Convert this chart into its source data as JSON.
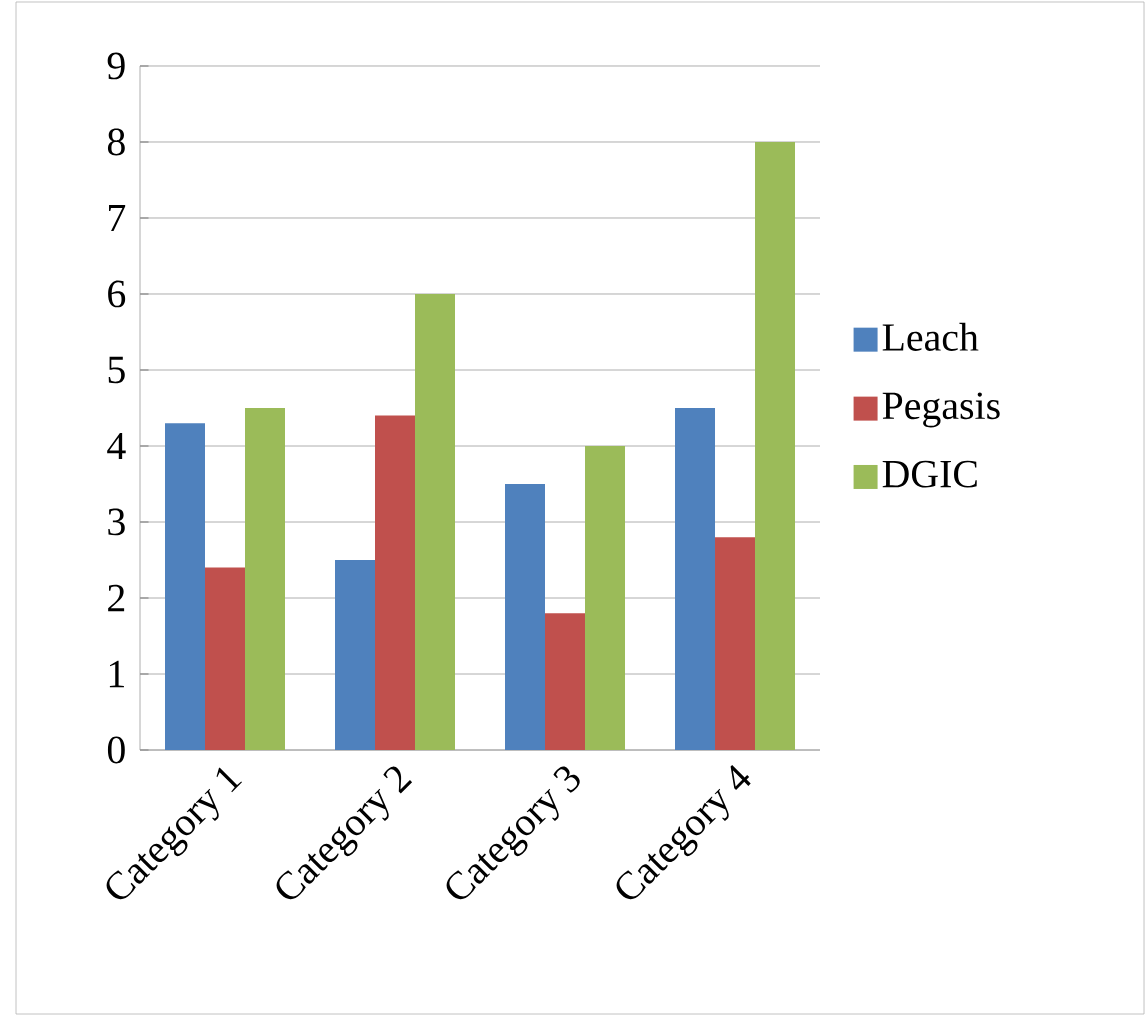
{
  "chart_data": {
    "type": "bar",
    "categories": [
      "Category 1",
      "Category 2",
      "Category 3",
      "Category 4"
    ],
    "series": [
      {
        "name": "Leach",
        "color": "#4f81bd",
        "values": [
          4.3,
          2.5,
          3.5,
          4.5
        ]
      },
      {
        "name": "Pegasis",
        "color": "#c0504d",
        "values": [
          2.4,
          4.4,
          1.8,
          2.8
        ]
      },
      {
        "name": "DGIC",
        "color": "#9bbb59",
        "values": [
          4.5,
          6,
          4,
          8
        ]
      }
    ],
    "ylim": [
      0,
      9
    ],
    "yticks": [
      0,
      1,
      2,
      3,
      4,
      5,
      6,
      7,
      8,
      9
    ],
    "grid": "y",
    "legend": "right"
  }
}
